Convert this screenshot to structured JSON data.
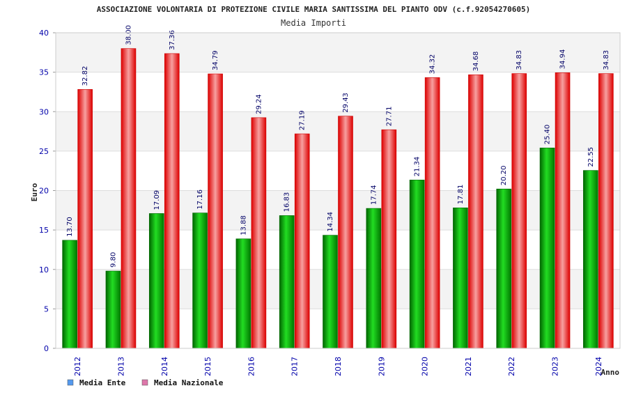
{
  "chart_data": {
    "type": "bar",
    "title": "ASSOCIAZIONE VOLONTARIA DI PROTEZIONE CIVILE MARIA SANTISSIMA DEL PIANTO ODV (c.f.92054270605)",
    "subtitle": "Media Importi",
    "xlabel": "Anno",
    "ylabel": "Euro",
    "ylim": [
      0,
      40
    ],
    "yticks": [
      0,
      5,
      10,
      15,
      20,
      25,
      30,
      35,
      40
    ],
    "grid": true,
    "legend_position": "bottom-left",
    "categories": [
      "2012",
      "2013",
      "2014",
      "2015",
      "2016",
      "2017",
      "2018",
      "2019",
      "2020",
      "2021",
      "2022",
      "2023",
      "2024"
    ],
    "series": [
      {
        "name": "Media Ente",
        "color": "#00aa00",
        "legend_color": "#5599ee",
        "values": [
          13.7,
          9.8,
          17.09,
          17.16,
          13.88,
          16.83,
          14.34,
          17.74,
          21.34,
          17.81,
          20.2,
          25.4,
          22.55
        ],
        "labels": [
          "13.70",
          "9.80",
          "17.09",
          "17.16",
          "13.88",
          "16.83",
          "14.34",
          "17.74",
          "21.34",
          "17.81",
          "20.20",
          "25.40",
          "22.55"
        ]
      },
      {
        "name": "Media Nazionale",
        "color": "#ee1111",
        "legend_color": "#dd77aa",
        "values": [
          32.82,
          38.0,
          37.36,
          34.79,
          29.24,
          27.19,
          29.43,
          27.71,
          34.32,
          34.68,
          34.83,
          34.94,
          34.83
        ],
        "labels": [
          "32.82",
          "38.00",
          "37.36",
          "34.79",
          "29.24",
          "27.19",
          "29.43",
          "27.71",
          "34.32",
          "34.68",
          "34.83",
          "34.94",
          "34.83"
        ]
      }
    ]
  }
}
